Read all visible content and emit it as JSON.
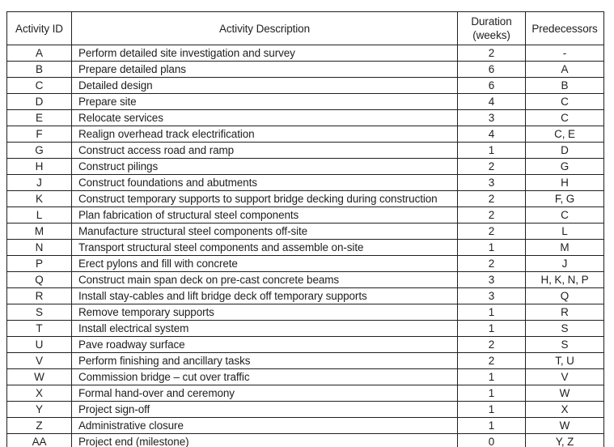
{
  "page": {
    "background": "#ffffff",
    "text_color": "#1f1f1f",
    "border_color": "#1f1f1f"
  },
  "table": {
    "headers": [
      "Activity ID",
      "Activity Description",
      "Duration\n(weeks)",
      "Predecessors"
    ],
    "rows": [
      {
        "id": "A",
        "description": "Perform detailed site investigation and survey",
        "duration": "2",
        "predecessors": "-"
      },
      {
        "id": "B",
        "description": "Prepare detailed plans",
        "duration": "6",
        "predecessors": "A"
      },
      {
        "id": "C",
        "description": "Detailed design",
        "duration": "6",
        "predecessors": "B"
      },
      {
        "id": "D",
        "description": "Prepare site",
        "duration": "4",
        "predecessors": "C"
      },
      {
        "id": "E",
        "description": "Relocate services",
        "duration": "3",
        "predecessors": "C"
      },
      {
        "id": "F",
        "description": "Realign overhead track electrification",
        "duration": "4",
        "predecessors": "C, E"
      },
      {
        "id": "G",
        "description": "Construct access road and ramp",
        "duration": "1",
        "predecessors": "D"
      },
      {
        "id": "H",
        "description": "Construct pilings",
        "duration": "2",
        "predecessors": "G"
      },
      {
        "id": "J",
        "description": "Construct foundations and abutments",
        "duration": "3",
        "predecessors": "H"
      },
      {
        "id": "K",
        "description": "Construct temporary supports to support bridge decking during construction",
        "duration": "2",
        "predecessors": "F, G"
      },
      {
        "id": "L",
        "description": "Plan fabrication of structural steel components",
        "duration": "2",
        "predecessors": "C"
      },
      {
        "id": "M",
        "description": "Manufacture structural steel components off-site",
        "duration": "2",
        "predecessors": "L"
      },
      {
        "id": "N",
        "description": "Transport structural steel components and assemble on-site",
        "duration": "1",
        "predecessors": "M"
      },
      {
        "id": "P",
        "description": "Erect pylons and fill with concrete",
        "duration": "2",
        "predecessors": "J"
      },
      {
        "id": "Q",
        "description": "Construct main span deck on pre-cast concrete beams",
        "duration": "3",
        "predecessors": "H, K, N, P"
      },
      {
        "id": "R",
        "description": "Install stay-cables and lift bridge deck off temporary supports",
        "duration": "3",
        "predecessors": "Q"
      },
      {
        "id": "S",
        "description": "Remove temporary supports",
        "duration": "1",
        "predecessors": "R"
      },
      {
        "id": "T",
        "description": "Install electrical system",
        "duration": "1",
        "predecessors": "S"
      },
      {
        "id": "U",
        "description": "Pave roadway surface",
        "duration": "2",
        "predecessors": "S"
      },
      {
        "id": "V",
        "description": "Perform finishing and ancillary tasks",
        "duration": "2",
        "predecessors": "T, U"
      },
      {
        "id": "W",
        "description": "Commission bridge – cut over traffic",
        "duration": "1",
        "predecessors": "V"
      },
      {
        "id": "X",
        "description": "Formal hand-over and ceremony",
        "duration": "1",
        "predecessors": "W"
      },
      {
        "id": "Y",
        "description": "Project sign-off",
        "duration": "1",
        "predecessors": "X"
      },
      {
        "id": "Z",
        "description": "Administrative closure",
        "duration": "1",
        "predecessors": "W"
      },
      {
        "id": "AA",
        "description": "Project end (milestone)",
        "duration": "0",
        "predecessors": "Y, Z"
      }
    ]
  }
}
